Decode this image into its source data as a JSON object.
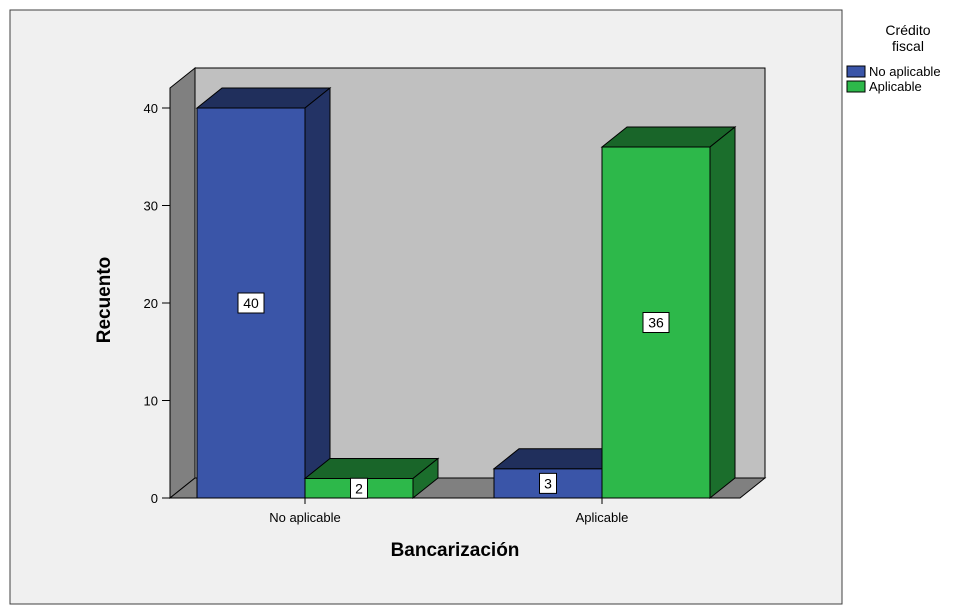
{
  "chart_data": {
    "type": "bar",
    "categories": [
      "No aplicable",
      "Aplicable"
    ],
    "series": [
      {
        "name": "No aplicable",
        "values": [
          40,
          3
        ],
        "color": "#3a55a8"
      },
      {
        "name": "Aplicable",
        "values": [
          2,
          36
        ],
        "color": "#2db84a"
      }
    ],
    "xlabel": "Bancarización",
    "ylabel": "Recuento",
    "ylim": [
      0,
      40
    ],
    "yticks": [
      0,
      10,
      20,
      30,
      40
    ],
    "legend": {
      "title_lines": [
        "Crédito",
        "fiscal"
      ],
      "placement": "top-right"
    },
    "style": {
      "plot_background": "#c0c0c0",
      "chart_background": "#f0f0f0",
      "side_wall_color": "#808080"
    }
  }
}
